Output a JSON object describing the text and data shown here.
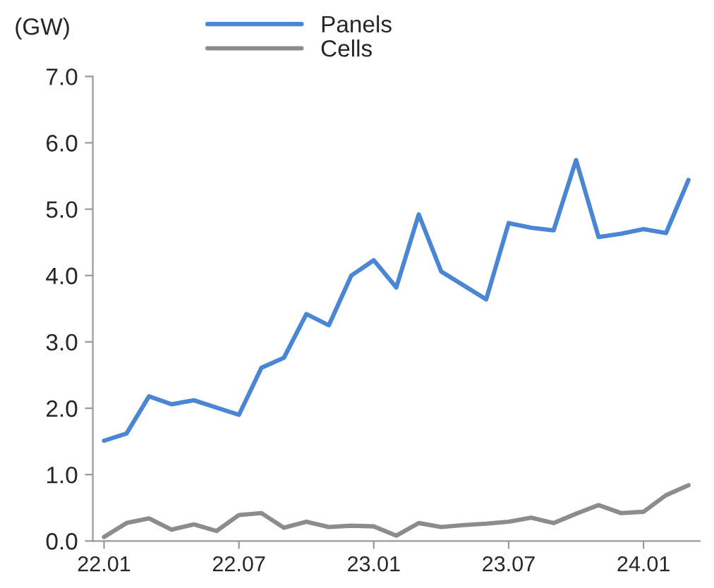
{
  "chart_data": {
    "type": "line",
    "ylabel": "(GW)",
    "categories": [
      "22.01",
      null,
      null,
      null,
      null,
      null,
      "22.07",
      null,
      null,
      null,
      null,
      null,
      "23.01",
      null,
      null,
      null,
      null,
      null,
      "23.07",
      null,
      null,
      null,
      null,
      null,
      "24.01",
      null,
      null
    ],
    "series": [
      {
        "name": "Panels",
        "color": "#4a86d4",
        "values": [
          1.51,
          1.62,
          2.18,
          2.06,
          2.12,
          2.01,
          1.9,
          2.61,
          2.76,
          3.42,
          3.25,
          4.0,
          4.23,
          3.82,
          4.92,
          4.06,
          3.85,
          3.64,
          4.79,
          4.72,
          4.68,
          5.74,
          4.58,
          4.63,
          4.7,
          4.64,
          5.44
        ]
      },
      {
        "name": "Cells",
        "color": "#8c8c8c",
        "values": [
          0.06,
          0.27,
          0.34,
          0.17,
          0.25,
          0.15,
          0.39,
          0.42,
          0.2,
          0.29,
          0.21,
          0.23,
          0.22,
          0.08,
          0.27,
          0.21,
          0.24,
          0.26,
          0.29,
          0.35,
          0.27,
          0.41,
          0.54,
          0.42,
          0.44,
          0.69,
          0.84
        ]
      }
    ],
    "ylim": [
      0,
      7
    ],
    "yticks": [
      {
        "value": 0,
        "label": "0.0"
      },
      {
        "value": 1,
        "label": "1.0"
      },
      {
        "value": 2,
        "label": "2.0"
      },
      {
        "value": 3,
        "label": "3.0"
      },
      {
        "value": 4,
        "label": "4.0"
      },
      {
        "value": 5,
        "label": "5.0"
      },
      {
        "value": 6,
        "label": "6.0"
      },
      {
        "value": 7,
        "label": "7.0"
      }
    ],
    "grid": false,
    "legend": "top",
    "marker": "none",
    "line_style": "solid"
  }
}
